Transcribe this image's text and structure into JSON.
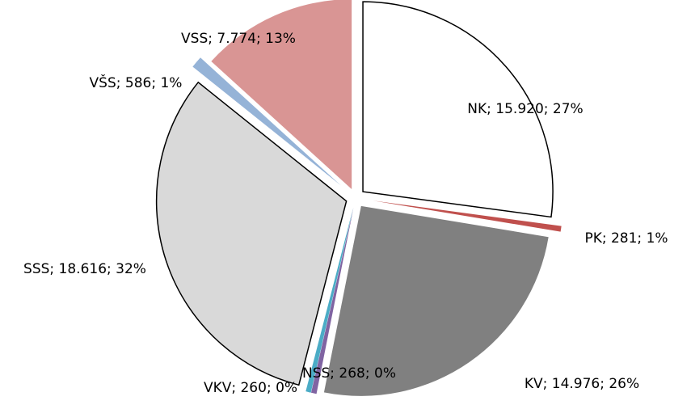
{
  "chart_data": {
    "type": "pie",
    "categories": [
      "NK",
      "PK",
      "KV",
      "NSS",
      "VKV",
      "SSS",
      "VŠS",
      "VSS"
    ],
    "values": [
      15920,
      281,
      14976,
      268,
      260,
      18616,
      586,
      7774
    ],
    "value_labels": [
      "NK; 15.920; 27%",
      "PK; 281; 1%",
      "KV; 14.976; 26%",
      "NSS; 268; 0%",
      "VKV; 260; 0%",
      "SSS; 18.616; 32%",
      "VŠS; 586; 1%",
      "VSS; 7.774; 13%"
    ],
    "colors": [
      "#ffffff",
      "#c0504d",
      "#808080",
      "#8064a2",
      "#4bacc6",
      "#d9d9d9",
      "#95b3d7",
      "#d99594"
    ]
  }
}
